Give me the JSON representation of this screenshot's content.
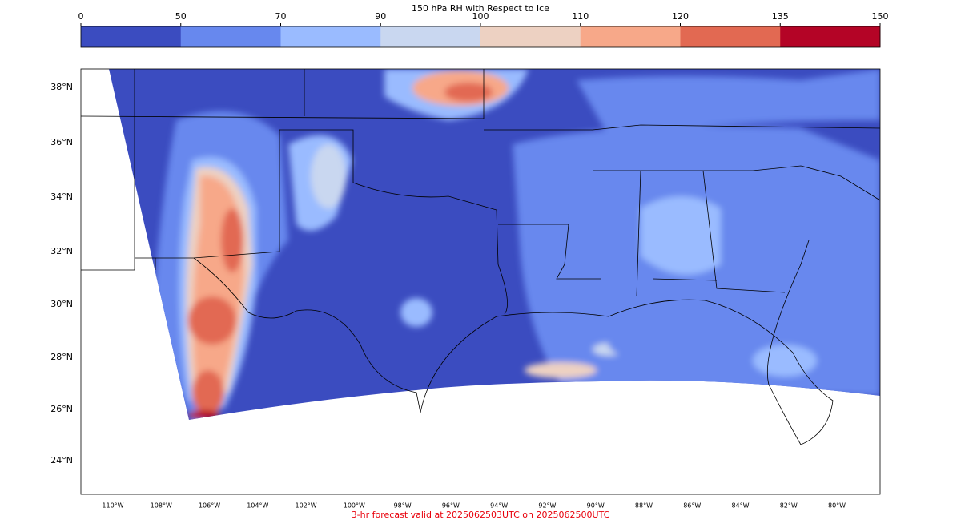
{
  "title": "150 hPa RH with Respect to Ice",
  "colorbar": {
    "ticks": [
      0,
      50,
      70,
      90,
      100,
      110,
      120,
      135,
      150
    ],
    "colors": [
      "#3b4cc0",
      "#6788ee",
      "#9abbff",
      "#c9d7f0",
      "#edd1c2",
      "#f7a889",
      "#e26952",
      "#b40426"
    ]
  },
  "latitude_labels": [
    "38°N",
    "36°N",
    "34°N",
    "32°N",
    "30°N",
    "28°N",
    "26°N",
    "24°N"
  ],
  "longitude_labels": [
    "110°W",
    "108°W",
    "106°W",
    "104°W",
    "102°W",
    "100°W",
    "98°W",
    "96°W",
    "94°W",
    "92°W",
    "90°W",
    "88°W",
    "86°W",
    "84°W",
    "82°W",
    "80°W"
  ],
  "footer": "3-hr forecast valid at 2025062503UTC on 2025062500UTC"
}
